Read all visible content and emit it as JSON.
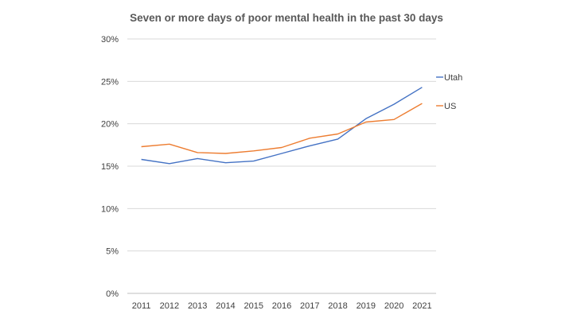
{
  "chart_data": {
    "type": "line",
    "title": "Seven or more days of poor mental health in the past 30 days",
    "xlabel": "",
    "ylabel": "",
    "categories": [
      "2011",
      "2012",
      "2013",
      "2014",
      "2015",
      "2016",
      "2017",
      "2018",
      "2019",
      "2020",
      "2021"
    ],
    "ylim": [
      0,
      30
    ],
    "yticks": [
      "0%",
      "5%",
      "10%",
      "15%",
      "20%",
      "25%",
      "30%"
    ],
    "ytick_values": [
      0,
      5,
      10,
      15,
      20,
      25,
      30
    ],
    "grid": true,
    "legend_position": "right",
    "series": [
      {
        "name": "Utah",
        "color": "#4472C4",
        "values": [
          15.8,
          15.3,
          15.9,
          15.4,
          15.6,
          16.5,
          17.4,
          18.2,
          20.6,
          22.3,
          24.3
        ]
      },
      {
        "name": "US",
        "color": "#ED7D31",
        "values": [
          17.3,
          17.6,
          16.6,
          16.5,
          16.8,
          17.2,
          18.3,
          18.8,
          20.2,
          20.5,
          22.4
        ]
      }
    ]
  }
}
